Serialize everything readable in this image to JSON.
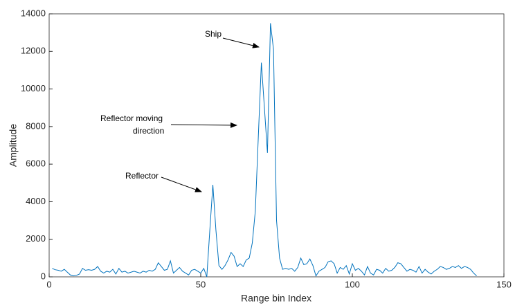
{
  "chart_data": {
    "type": "line",
    "x_label": "Range bin Index",
    "y_label": "Amplitude",
    "x": [
      1,
      2,
      3,
      4,
      5,
      6,
      7,
      8,
      9,
      10,
      11,
      12,
      13,
      14,
      15,
      16,
      17,
      18,
      19,
      20,
      21,
      22,
      23,
      24,
      25,
      26,
      27,
      28,
      29,
      30,
      31,
      32,
      33,
      34,
      35,
      36,
      37,
      38,
      39,
      40,
      41,
      42,
      43,
      44,
      45,
      46,
      47,
      48,
      49,
      50,
      51,
      52,
      53,
      54,
      55,
      56,
      57,
      58,
      59,
      60,
      61,
      62,
      63,
      64,
      65,
      66,
      67,
      68,
      69,
      70,
      71,
      72,
      73,
      74,
      75,
      76,
      77,
      78,
      79,
      80,
      81,
      82,
      83,
      84,
      85,
      86,
      87,
      88,
      89,
      90,
      91,
      92,
      93,
      94,
      95,
      96,
      97,
      98,
      99,
      100,
      101,
      102,
      103,
      104,
      105,
      106,
      107,
      108,
      109,
      110,
      111,
      112,
      113,
      114,
      115,
      116,
      117,
      118,
      119,
      120,
      121,
      122,
      123,
      124,
      125,
      126,
      127,
      128,
      129,
      130,
      131,
      132,
      133,
      134,
      135,
      136,
      137,
      138,
      139,
      140,
      141
    ],
    "series": [
      {
        "color": "#0072bd",
        "values": [
          450,
          380,
          350,
          300,
          400,
          250,
          100,
          50,
          80,
          150,
          450,
          350,
          380,
          350,
          400,
          550,
          300,
          200,
          300,
          250,
          400,
          150,
          450,
          250,
          300,
          200,
          250,
          300,
          250,
          200,
          300,
          250,
          350,
          300,
          400,
          750,
          550,
          350,
          400,
          850,
          200,
          350,
          500,
          300,
          200,
          100,
          350,
          400,
          300,
          200,
          450,
          0,
          2500,
          4900,
          2500,
          600,
          400,
          600,
          900,
          1300,
          1100,
          550,
          700,
          550,
          900,
          1000,
          1800,
          3500,
          7500,
          11400,
          9000,
          6600,
          13500,
          12100,
          3000,
          1000,
          400,
          450,
          400,
          450,
          300,
          500,
          1000,
          650,
          700,
          950,
          600,
          50,
          300,
          400,
          500,
          800,
          850,
          700,
          200,
          500,
          400,
          600,
          150,
          700,
          350,
          450,
          300,
          100,
          550,
          200,
          100,
          400,
          350,
          200,
          450,
          300,
          350,
          500,
          750,
          700,
          500,
          300,
          400,
          350,
          250,
          550,
          200,
          400,
          250,
          150,
          300,
          400,
          550,
          500,
          400,
          450,
          550,
          500,
          600,
          450,
          550,
          500,
          400,
          200,
          50
        ]
      }
    ],
    "xlim": [
      0,
      150
    ],
    "xticks": [
      0,
      50,
      100,
      150
    ],
    "ylim": [
      0,
      14000
    ],
    "yticks": [
      0,
      2000,
      4000,
      6000,
      8000,
      10000,
      12000,
      14000
    ],
    "annotations": [
      {
        "text": "Ship"
      },
      {
        "text": [
          "Reflector moving",
          "direction"
        ]
      },
      {
        "text": "Reflector"
      }
    ]
  }
}
